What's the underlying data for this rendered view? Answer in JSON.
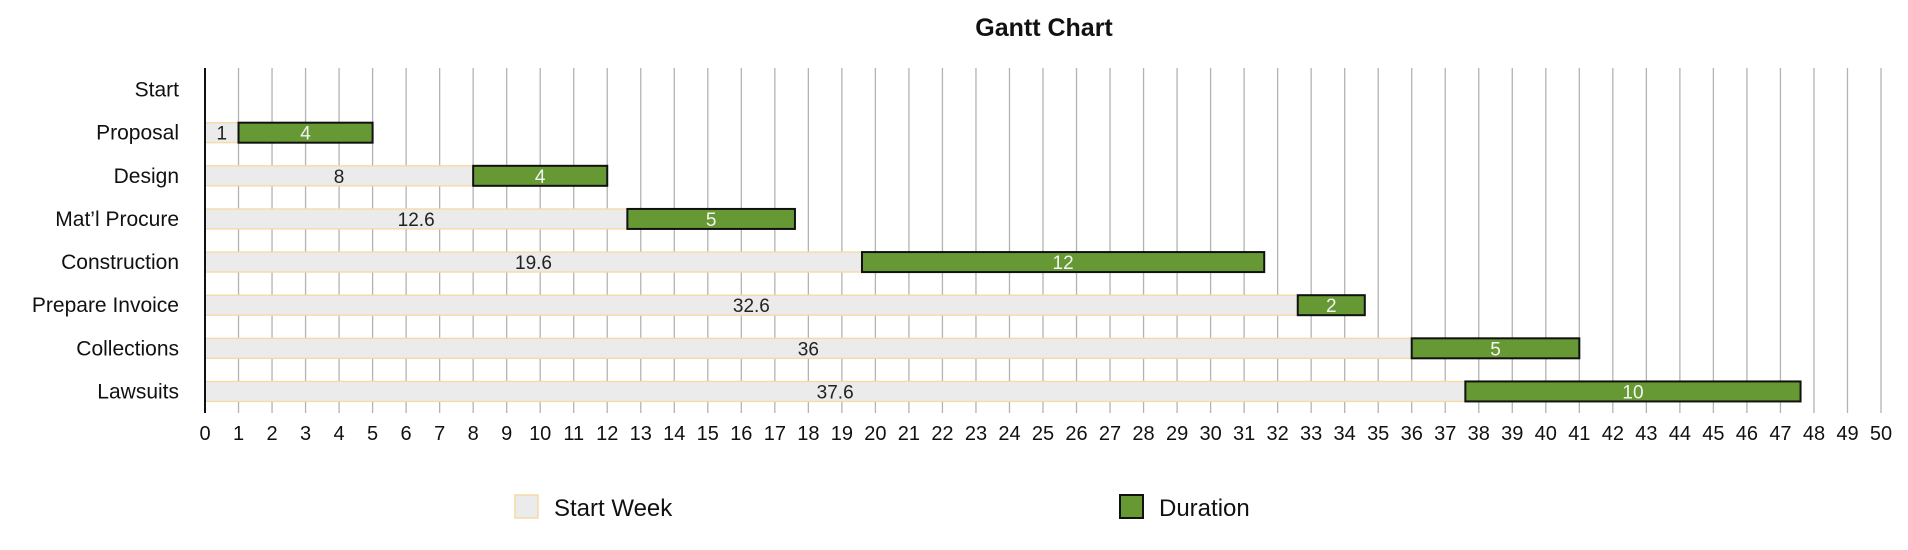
{
  "chart_data": {
    "type": "bar",
    "orientation": "horizontal",
    "stacked": true,
    "title": "Gantt Chart",
    "categories": [
      "Start",
      "Proposal",
      "Design",
      "Mat’l Procure",
      "Construction",
      "Prepare Invoice",
      "Collections",
      "Lawsuits"
    ],
    "series": [
      {
        "name": "Start Week",
        "values": [
          null,
          1,
          8,
          12.6,
          19.6,
          32.6,
          36,
          37.6
        ],
        "color": "#ebebeb",
        "border": "#f6d9a3"
      },
      {
        "name": "Duration",
        "values": [
          null,
          4,
          4,
          5,
          12,
          2,
          5,
          10
        ],
        "color": "#669933",
        "border": "#111111"
      }
    ],
    "xlim": [
      0,
      50
    ],
    "xticks": [
      0,
      1,
      2,
      3,
      4,
      5,
      6,
      7,
      8,
      9,
      10,
      11,
      12,
      13,
      14,
      15,
      16,
      17,
      18,
      19,
      20,
      21,
      22,
      23,
      24,
      25,
      26,
      27,
      28,
      29,
      30,
      31,
      32,
      33,
      34,
      35,
      36,
      37,
      38,
      39,
      40,
      41,
      42,
      43,
      44,
      45,
      46,
      47,
      48,
      49,
      50
    ],
    "grid": "vertical",
    "legend": "bottom"
  }
}
